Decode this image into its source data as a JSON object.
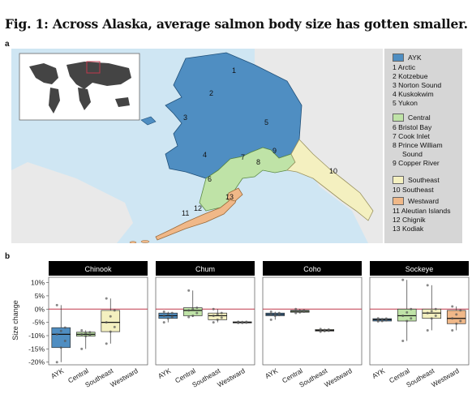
{
  "title": "Fig. 1: Across Alaska, average salmon body size has gotten smaller.",
  "panel_a_label": "a",
  "panel_b_label": "b",
  "colors": {
    "ayk": "#4f8ec2",
    "central": "#bfe3a7",
    "southeast": "#f4f0c0",
    "westward": "#f0b888",
    "refline": "#c0394b",
    "ocean": "#cfe6f3",
    "land": "#e8e8e8"
  },
  "map": {
    "region_numbers": [
      "1",
      "2",
      "3",
      "4",
      "5",
      "6",
      "7",
      "8",
      "9",
      "10",
      "11",
      "12",
      "13"
    ]
  },
  "legend": {
    "groups": [
      {
        "name": "AYK",
        "color": "#4f8ec2",
        "regions": [
          "1 Arctic",
          "2 Kotzebue",
          "3 Norton Sound",
          "4 Kuskokwim",
          "5 Yukon"
        ]
      },
      {
        "name": "Central",
        "color": "#bfe3a7",
        "regions": [
          "6 Bristol Bay",
          "7 Cook Inlet",
          "8 Prince William",
          "Sound",
          "9 Copper River"
        ]
      },
      {
        "name": "Southeast",
        "color": "#f4f0c0",
        "regions": [
          "10 Southeast"
        ]
      },
      {
        "name": "Westward",
        "color": "#f0b888",
        "regions": [
          "11 Aleutian Islands",
          "12 Chignik",
          "13 Kodiak"
        ]
      }
    ]
  },
  "chart_data": {
    "type": "box",
    "ylabel": "Size change",
    "ylim": [
      -21,
      12
    ],
    "yticks": [
      "10%",
      "5%",
      "0%",
      "-5%",
      "-10%",
      "-15%",
      "-20%"
    ],
    "ytick_values": [
      10,
      5,
      0,
      -5,
      -10,
      -15,
      -20
    ],
    "categories": [
      "AYK",
      "Central",
      "Southeast",
      "Westward"
    ],
    "facets": [
      {
        "name": "Chinook",
        "boxes": [
          {
            "cat": "AYK",
            "q1": -14.5,
            "med": -9.5,
            "q3": -7,
            "wlo": -20,
            "whi": 1.5,
            "color": "#4f8ec2"
          },
          {
            "cat": "Central",
            "q1": -10.2,
            "med": -9.5,
            "q3": -8.7,
            "wlo": -15,
            "whi": -8,
            "color": "#bfe3a7"
          },
          {
            "cat": "Southeast",
            "q1": -8.5,
            "med": -5,
            "q3": -0.5,
            "wlo": -13,
            "whi": 4,
            "color": "#f4f0c0"
          }
        ]
      },
      {
        "name": "Chum",
        "boxes": [
          {
            "cat": "AYK",
            "q1": -3.5,
            "med": -2.5,
            "q3": -1.5,
            "wlo": -5,
            "whi": -1,
            "color": "#4f8ec2"
          },
          {
            "cat": "Central",
            "q1": -2.5,
            "med": -0.5,
            "q3": 0.5,
            "wlo": -3,
            "whi": 7,
            "color": "#bfe3a7"
          },
          {
            "cat": "Southeast",
            "q1": -4,
            "med": -2.5,
            "q3": -1.5,
            "wlo": -5,
            "whi": 0,
            "color": "#f4f0c0"
          },
          {
            "cat": "Westward",
            "q1": -5.2,
            "med": -5,
            "q3": -4.8,
            "wlo": -5.2,
            "whi": -4.8,
            "color": "#f0b888"
          }
        ]
      },
      {
        "name": "Coho",
        "boxes": [
          {
            "cat": "AYK",
            "q1": -2.5,
            "med": -2,
            "q3": -1.5,
            "wlo": -4,
            "whi": -1,
            "color": "#4f8ec2"
          },
          {
            "cat": "Central",
            "q1": -1.2,
            "med": -0.8,
            "q3": -0.5,
            "wlo": -1.5,
            "whi": 0,
            "color": "#bfe3a7"
          },
          {
            "cat": "Southeast",
            "q1": -8.3,
            "med": -8,
            "q3": -7.7,
            "wlo": -8.5,
            "whi": -7.5,
            "color": "#f4f0c0"
          }
        ]
      },
      {
        "name": "Sockeye",
        "boxes": [
          {
            "cat": "AYK",
            "q1": -4.5,
            "med": -4,
            "q3": -3.6,
            "wlo": -4.6,
            "whi": -3.5,
            "color": "#4f8ec2"
          },
          {
            "cat": "Central",
            "q1": -4.5,
            "med": -2.5,
            "q3": 0,
            "wlo": -12,
            "whi": 11,
            "color": "#bfe3a7"
          },
          {
            "cat": "Southeast",
            "q1": -3.5,
            "med": -1.5,
            "q3": 0,
            "wlo": -8,
            "whi": 9,
            "color": "#f4f0c0"
          },
          {
            "cat": "Westward",
            "q1": -5.5,
            "med": -3.5,
            "q3": -0.5,
            "wlo": -8,
            "whi": 1,
            "color": "#f0b888"
          }
        ]
      }
    ]
  }
}
